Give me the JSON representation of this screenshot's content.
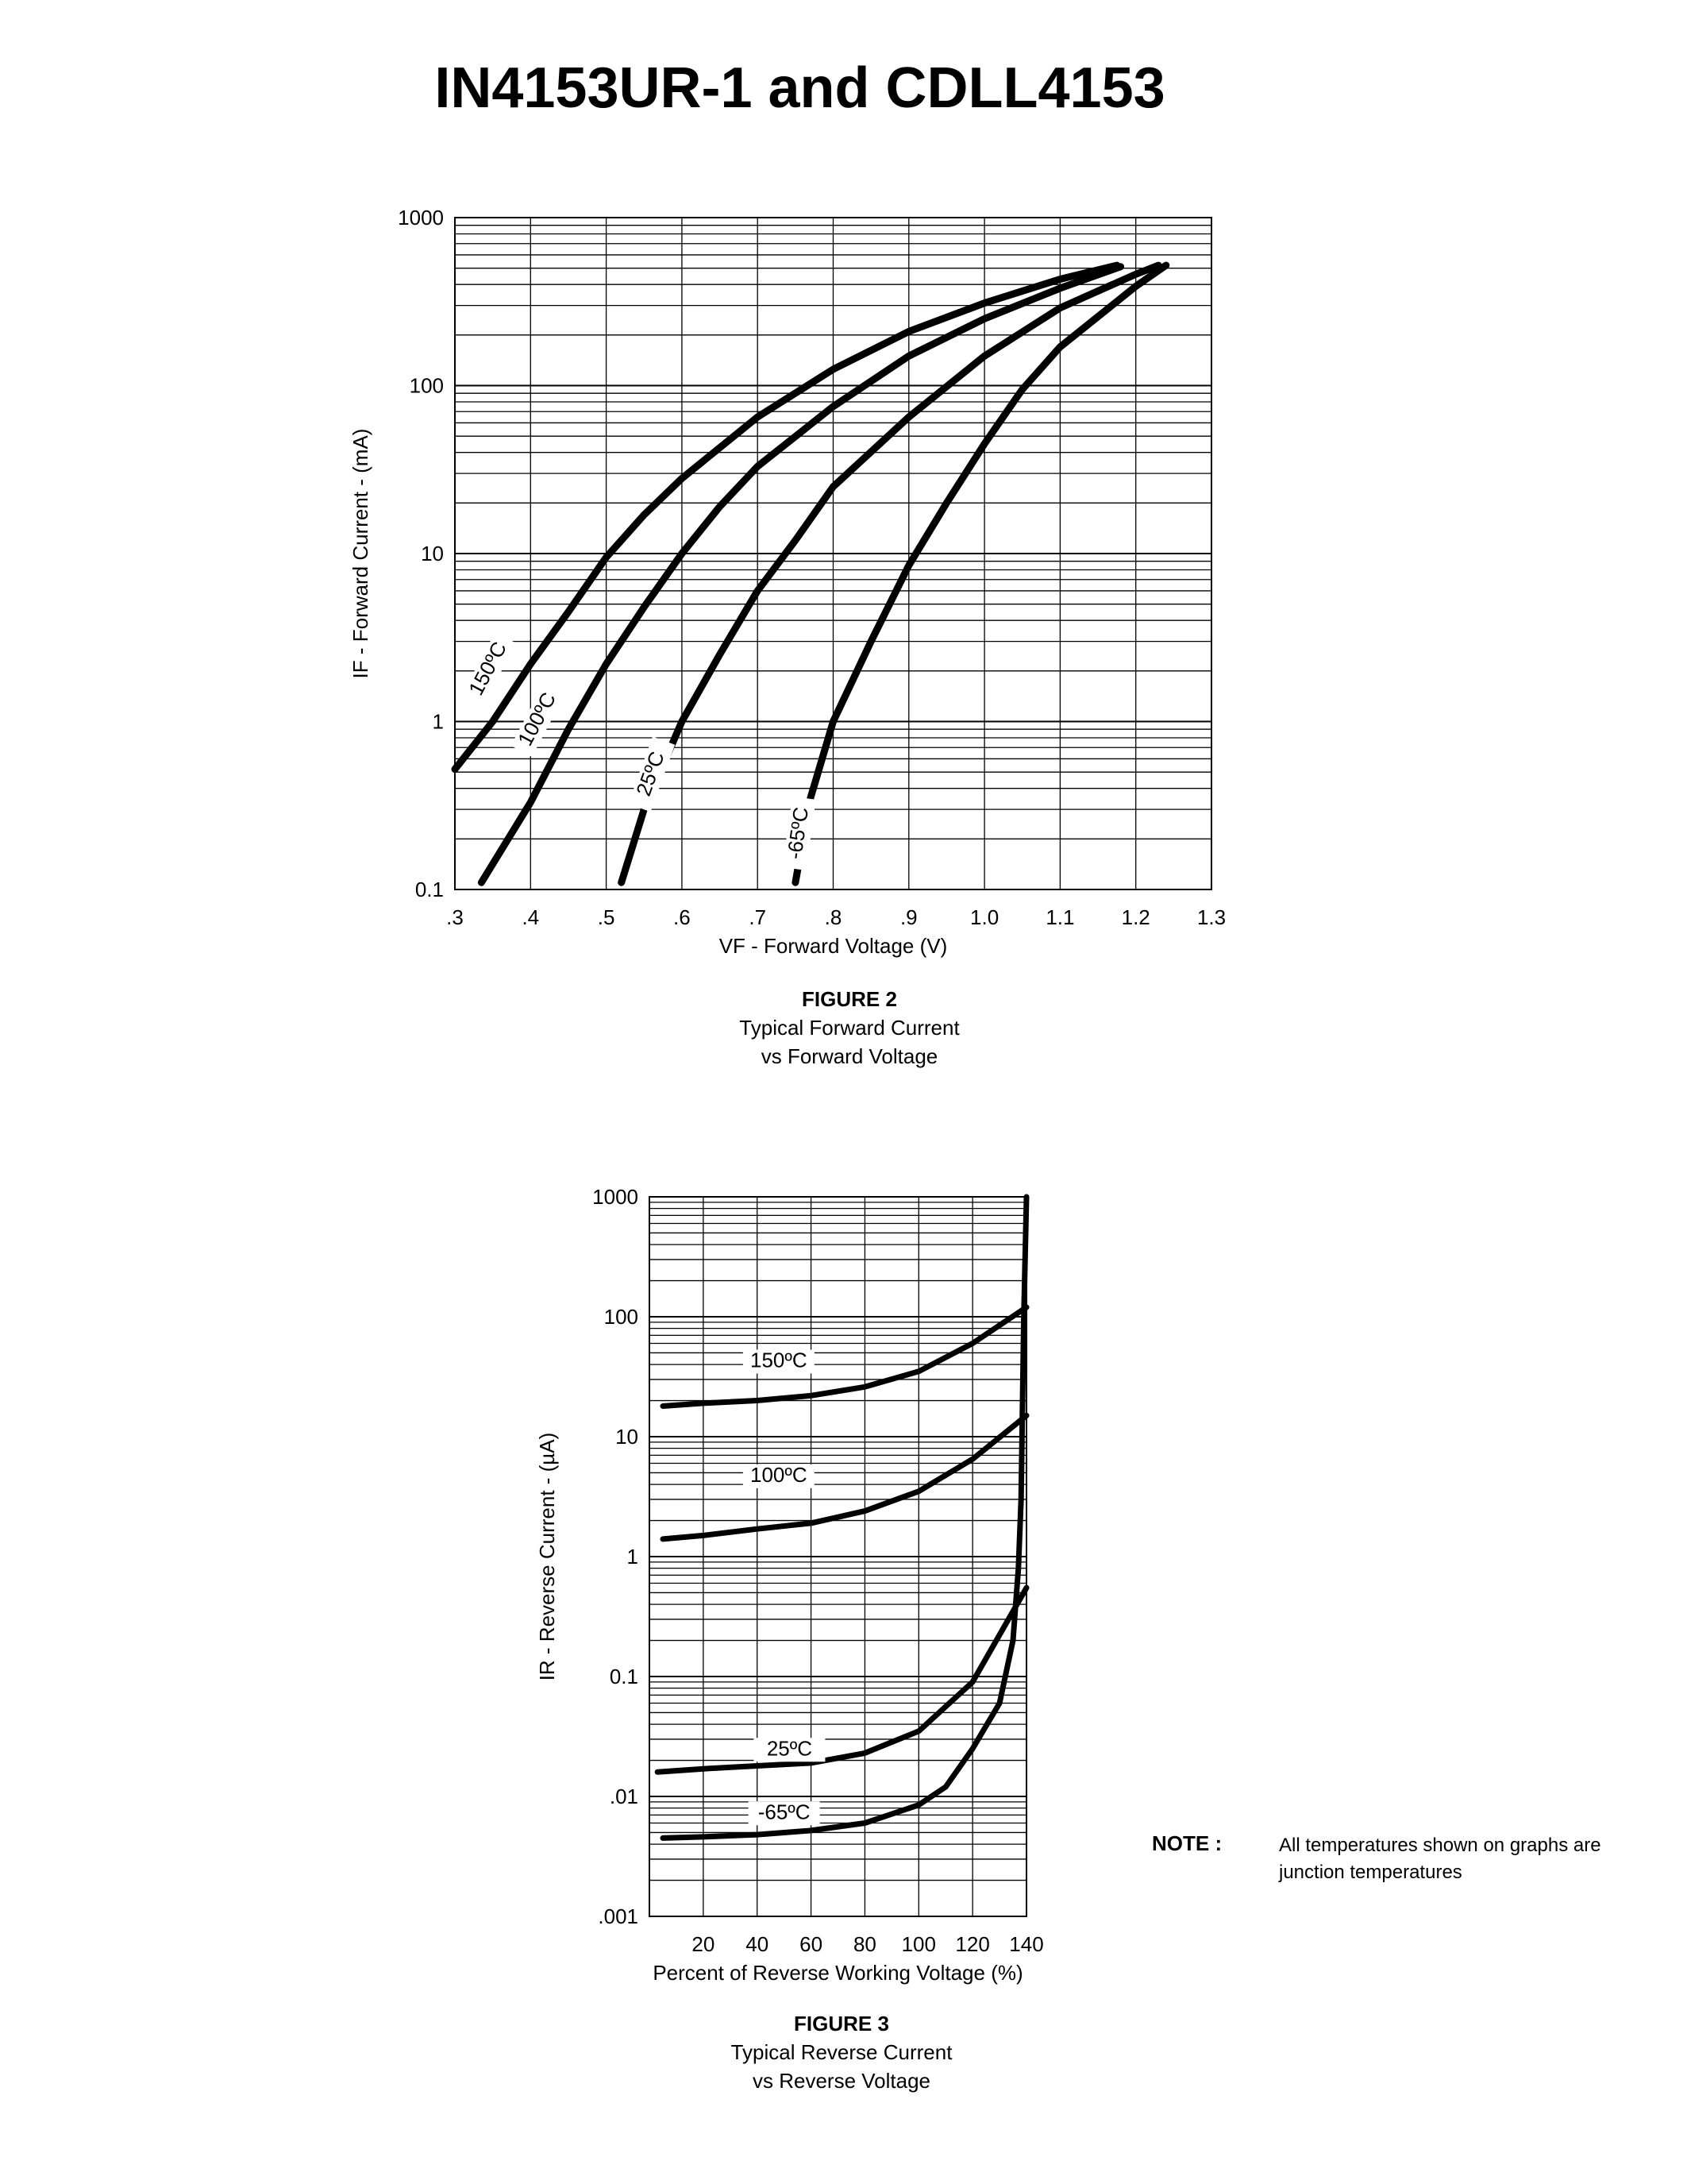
{
  "title": "IN4153UR-1 and CDLL4153",
  "figures": [
    {
      "number": "FIGURE 2",
      "caption_lines": [
        "Typical Forward Current",
        "vs Forward Voltage"
      ]
    },
    {
      "number": "FIGURE 3",
      "caption_lines": [
        "Typical Reverse Current",
        "vs Reverse Voltage"
      ]
    }
  ],
  "note": {
    "label": "NOTE :",
    "lines": [
      "All temperatures shown on graphs are",
      "junction temperatures"
    ]
  },
  "chart_data": [
    {
      "type": "line",
      "title": "",
      "xlabel": "VF - Forward Voltage (V)",
      "ylabel": "IF - Forward Current - (mA)",
      "xlim": [
        0.3,
        1.3
      ],
      "ylim": [
        0.1,
        1000
      ],
      "yscale": "log",
      "grid": true,
      "xticks": [
        ".3",
        ".4",
        ".5",
        ".6",
        ".7",
        ".8",
        ".9",
        "1.0",
        "1.1",
        "1.2",
        "1.3"
      ],
      "yticks": [
        "0.1",
        "1",
        "10",
        "100",
        "1000"
      ],
      "series": [
        {
          "name": "150ºC",
          "points": [
            [
              0.3,
              0.52
            ],
            [
              0.35,
              1.0
            ],
            [
              0.4,
              2.2
            ],
            [
              0.45,
              4.5
            ],
            [
              0.5,
              9.5
            ],
            [
              0.55,
              17
            ],
            [
              0.6,
              28
            ],
            [
              0.7,
              65
            ],
            [
              0.8,
              125
            ],
            [
              0.9,
              210
            ],
            [
              1.0,
              310
            ],
            [
              1.1,
              430
            ],
            [
              1.175,
              520
            ]
          ]
        },
        {
          "name": "100ºC",
          "points": [
            [
              0.335,
              0.11
            ],
            [
              0.4,
              0.33
            ],
            [
              0.45,
              0.9
            ],
            [
              0.5,
              2.2
            ],
            [
              0.55,
              4.8
            ],
            [
              0.6,
              10
            ],
            [
              0.65,
              19
            ],
            [
              0.7,
              33
            ],
            [
              0.8,
              75
            ],
            [
              0.9,
              150
            ],
            [
              1.0,
              250
            ],
            [
              1.1,
              380
            ],
            [
              1.18,
              510
            ]
          ]
        },
        {
          "name": "25ºC",
          "points": [
            [
              0.52,
              0.11
            ],
            [
              0.55,
              0.3
            ],
            [
              0.6,
              1.0
            ],
            [
              0.65,
              2.5
            ],
            [
              0.7,
              6
            ],
            [
              0.75,
              12
            ],
            [
              0.8,
              25
            ],
            [
              0.9,
              65
            ],
            [
              1.0,
              150
            ],
            [
              1.1,
              290
            ],
            [
              1.2,
              460
            ],
            [
              1.23,
              520
            ]
          ]
        },
        {
          "name": "-65ºC",
          "points": [
            [
              0.75,
              0.11
            ],
            [
              0.77,
              0.35
            ],
            [
              0.8,
              1.0
            ],
            [
              0.85,
              3
            ],
            [
              0.9,
              8.5
            ],
            [
              0.95,
              20
            ],
            [
              1.0,
              45
            ],
            [
              1.05,
              95
            ],
            [
              1.1,
              170
            ],
            [
              1.2,
              390
            ],
            [
              1.24,
              520
            ]
          ]
        }
      ]
    },
    {
      "type": "line",
      "title": "",
      "xlabel": "Percent of Reverse Working Voltage (%)",
      "ylabel": "IR - Reverse Current - (µA)",
      "xlim": [
        0,
        140
      ],
      "ylim": [
        0.001,
        1000
      ],
      "yscale": "log",
      "grid": true,
      "xticks": [
        "20",
        "40",
        "60",
        "80",
        "100",
        "120",
        "140"
      ],
      "yticks": [
        ".001",
        ".01",
        "0.1",
        "1",
        "10",
        "100",
        "1000"
      ],
      "series": [
        {
          "name": "150ºC",
          "points": [
            [
              5,
              18
            ],
            [
              20,
              19
            ],
            [
              40,
              20
            ],
            [
              60,
              22
            ],
            [
              80,
              26
            ],
            [
              100,
              35
            ],
            [
              120,
              60
            ],
            [
              140,
              120
            ]
          ]
        },
        {
          "name": "100ºC",
          "points": [
            [
              5,
              1.4
            ],
            [
              20,
              1.5
            ],
            [
              40,
              1.7
            ],
            [
              60,
              1.9
            ],
            [
              80,
              2.4
            ],
            [
              100,
              3.5
            ],
            [
              120,
              6.5
            ],
            [
              140,
              15
            ]
          ]
        },
        {
          "name": "25ºC",
          "points": [
            [
              3,
              0.016
            ],
            [
              20,
              0.017
            ],
            [
              40,
              0.018
            ],
            [
              60,
              0.019
            ],
            [
              80,
              0.023
            ],
            [
              100,
              0.035
            ],
            [
              120,
              0.09
            ],
            [
              140,
              0.55
            ]
          ]
        },
        {
          "name": "-65ºC",
          "points": [
            [
              5,
              0.0045
            ],
            [
              20,
              0.0046
            ],
            [
              40,
              0.0048
            ],
            [
              60,
              0.0052
            ],
            [
              80,
              0.006
            ],
            [
              100,
              0.0085
            ],
            [
              110,
              0.012
            ],
            [
              120,
              0.025
            ],
            [
              130,
              0.06
            ],
            [
              135,
              0.2
            ],
            [
              137,
              0.8
            ],
            [
              138,
              3
            ],
            [
              139,
              100
            ],
            [
              140,
              1000
            ]
          ]
        }
      ]
    }
  ]
}
